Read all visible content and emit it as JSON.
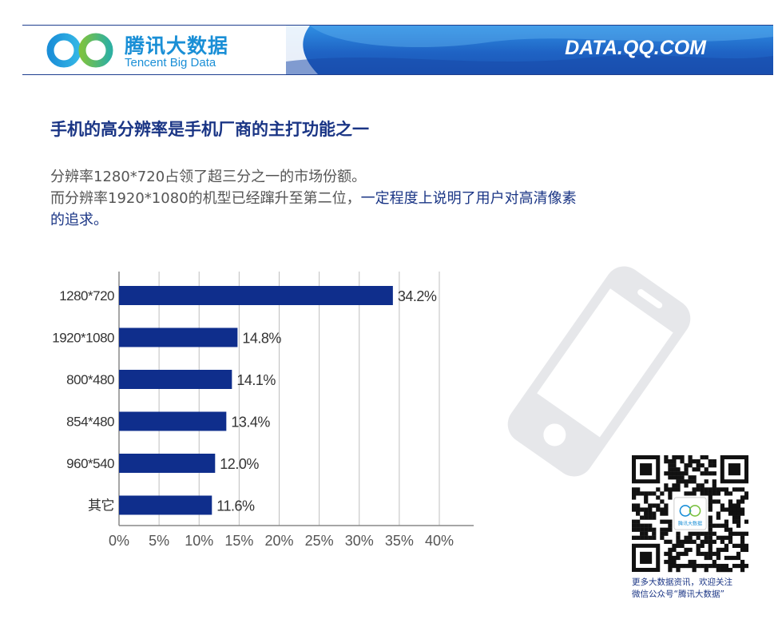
{
  "header": {
    "logo_cn": "腾讯大数据",
    "logo_en": "Tencent Big Data",
    "site": "DATA.QQ.COM"
  },
  "title": "手机的高分辨率是手机厂商的主打功能之一",
  "subtitle": {
    "line1": "分辨率1280*720占领了超三分之一的市场份额。",
    "line2_plain": "而分辨率1920*1080的机型已经蹿升至第二位，",
    "line2_highlight": "一定程度上说明了用户对高清像素",
    "line3_highlight": "的追求。"
  },
  "colors": {
    "bar": "#0f2e8c",
    "title": "#1a3585",
    "grid": "#bfbfbf",
    "banner": "#1f63c4",
    "phone": "#e6e7ea"
  },
  "chart_data": {
    "type": "bar",
    "orientation": "horizontal",
    "categories": [
      "1280*720",
      "1920*1080",
      "800*480",
      "854*480",
      "960*540",
      "其它"
    ],
    "values": [
      34.2,
      14.8,
      14.1,
      13.4,
      12.0,
      11.6
    ],
    "value_labels": [
      "34.2%",
      "14.8%",
      "14.1%",
      "13.4%",
      "12.0%",
      "11.6%"
    ],
    "xlim": [
      0,
      40
    ],
    "xticks": [
      "0%",
      "5%",
      "10%",
      "15%",
      "20%",
      "25%",
      "30%",
      "35%",
      "40%"
    ],
    "grid": true
  },
  "qr": {
    "badge_text": "腾讯大数据",
    "caption_line1": "更多大数据资讯，欢迎关注",
    "caption_line2": "微信公众号“腾讯大数据”"
  }
}
